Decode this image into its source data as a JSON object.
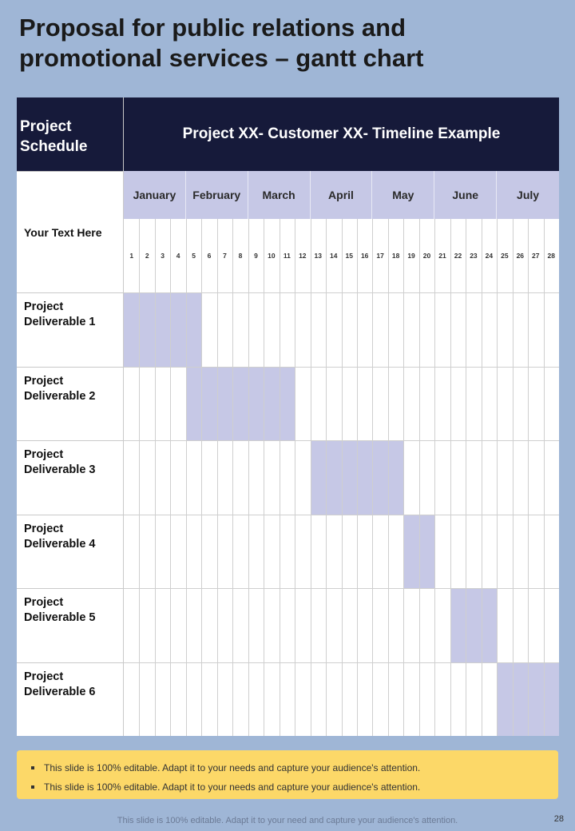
{
  "title": "Proposal for public relations and promotional services – gantt chart",
  "schedule_label": "Project Schedule",
  "timeline_title": "Project XX- Customer XX- Timeline Example",
  "your_text": "Your Text Here",
  "colors": {
    "background": "#9fb6d6",
    "header": "#161a3a",
    "bar": "#c6c8e6",
    "note_box": "#fcd868"
  },
  "chart_data": {
    "type": "gantt",
    "months": [
      {
        "label": "January",
        "start_week": 1,
        "end_week": 4
      },
      {
        "label": "February",
        "start_week": 5,
        "end_week": 8
      },
      {
        "label": "March",
        "start_week": 9,
        "end_week": 12
      },
      {
        "label": "April",
        "start_week": 13,
        "end_week": 16
      },
      {
        "label": "May",
        "start_week": 17,
        "end_week": 20
      },
      {
        "label": "June",
        "start_week": 21,
        "end_week": 24
      },
      {
        "label": "July",
        "start_week": 25,
        "end_week": 28
      }
    ],
    "weeks": [
      "1",
      "2",
      "3",
      "4",
      "5",
      "6",
      "7",
      "8",
      "9",
      "10",
      "11",
      "12",
      "13",
      "14",
      "15",
      "16",
      "17",
      "18",
      "19",
      "20",
      "21",
      "22",
      "23",
      "24",
      "25",
      "26",
      "27",
      "28"
    ],
    "tasks": [
      {
        "label": "Project Deliverable 1",
        "start_week": 1,
        "end_week": 5
      },
      {
        "label": "Project Deliverable 2",
        "start_week": 5,
        "end_week": 11
      },
      {
        "label": "Project Deliverable 3",
        "start_week": 13,
        "end_week": 18
      },
      {
        "label": "Project Deliverable 4",
        "start_week": 19,
        "end_week": 20
      },
      {
        "label": "Project Deliverable 5",
        "start_week": 22,
        "end_week": 24
      },
      {
        "label": "Project Deliverable 6",
        "start_week": 25,
        "end_week": 28
      }
    ]
  },
  "notes": [
    "This slide is 100% editable. Adapt it to your needs and capture your audience's attention.",
    "This slide is 100% editable. Adapt it to your needs and capture your audience's attention."
  ],
  "footer": "This slide is 100% editable. Adapt it to your need and capture your audience's attention.",
  "page_number": "28"
}
